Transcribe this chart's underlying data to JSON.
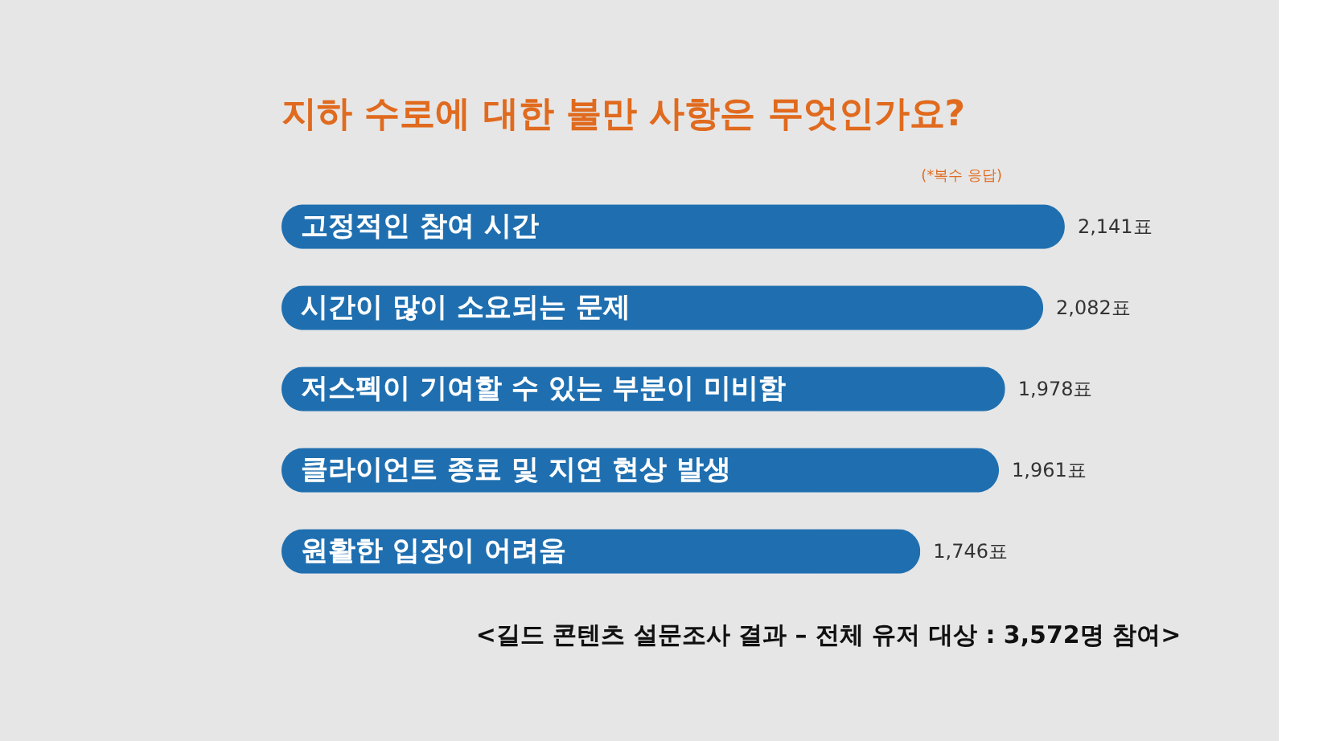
{
  "chart_data": {
    "type": "bar",
    "orientation": "horizontal",
    "title": "지하 수로에 대한 불만 사항은 무엇인가요?",
    "annotations": [
      "(*복수 응답)",
      "<길드 콘텐츠 설문조사 결과 – 전체 유저 대상 : 3,572명 참여>"
    ],
    "categories": [
      "고정적인 참여 시간",
      "시간이 많이 소요되는 문제",
      "저스펙이 기여할 수 있는 부분이 미비함",
      "클라이언트 종료 및 지연 현상 발생",
      "원활한 입장이 어려움"
    ],
    "values": [
      2141,
      2082,
      1978,
      1961,
      1746
    ],
    "value_labels": [
      "2,141표",
      "2,082표",
      "1,978표",
      "1,961표",
      "1,746표"
    ],
    "color": "#1f6fb0"
  }
}
